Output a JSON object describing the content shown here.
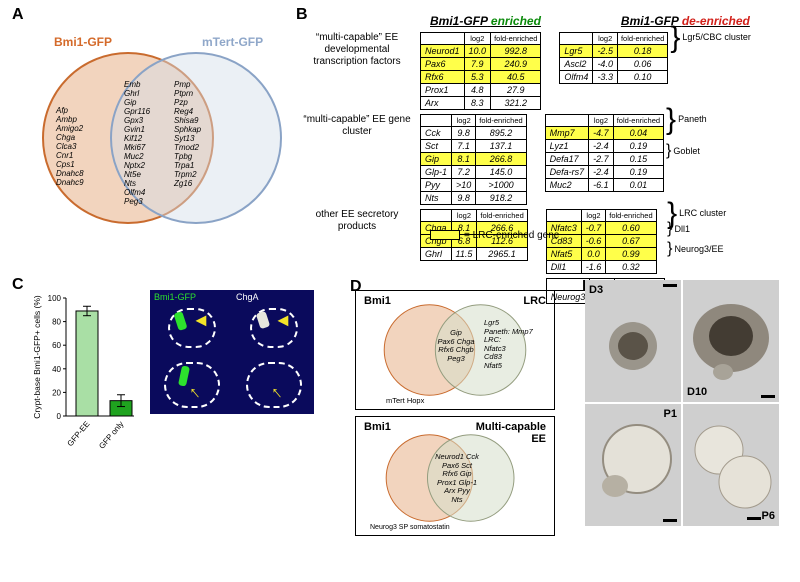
{
  "panelA": {
    "label_left": "Bmi1-GFP",
    "label_right": "mTert-GFP",
    "color_left": "#e7b089",
    "color_right": "#d3dde9",
    "stroke_left": "#c96b2e",
    "stroke_right": "#8aa3c6",
    "left_only": [
      "Afp",
      "Ambp",
      "Amigo2",
      "Chga",
      "Clca3",
      "Cnr1",
      "Cps1",
      "Dnahc8",
      "Dnahc9"
    ],
    "overlap_col1": [
      "Emb",
      "Ghrl",
      "Gip",
      "Gpr116",
      "Gpx3",
      "Gvin1",
      "Kif12",
      "Mki67",
      "Muc2",
      "Nptx2",
      "Nt5e",
      "Nts",
      "Olfm4",
      "Peg3"
    ],
    "overlap_col2": [
      "Pmp",
      "Ptprn",
      "Pzp",
      "Reg4",
      "Shisa9",
      "Sphkap",
      "Syt13",
      "Tmod2",
      "Tpbg",
      "Trpa1",
      "Trpm2",
      "Zg16"
    ]
  },
  "panelB": {
    "tables_left": [
      {
        "row_label": "“multi-capable” EE developmental transcription factors",
        "rows": [
          {
            "g": "Neurod1",
            "l": "10.0",
            "f": "992.8",
            "hl": true
          },
          {
            "g": "Pax6",
            "l": "7.9",
            "f": "240.9",
            "hl": true
          },
          {
            "g": "Rfx6",
            "l": "5.3",
            "f": "40.5",
            "hl": true
          },
          {
            "g": "Prox1",
            "l": "4.8",
            "f": "27.9",
            "hl": false
          },
          {
            "g": "Arx",
            "l": "8.3",
            "f": "321.2",
            "hl": false
          }
        ]
      },
      {
        "row_label": "“multi-capable” EE gene cluster",
        "rows": [
          {
            "g": "Cck",
            "l": "9.8",
            "f": "895.2",
            "hl": false
          },
          {
            "g": "Sct",
            "l": "7.1",
            "f": "137.1",
            "hl": false
          },
          {
            "g": "Gip",
            "l": "8.1",
            "f": "266.8",
            "hl": true
          },
          {
            "g": "Glp-1",
            "l": "7.2",
            "f": "145.0",
            "hl": false
          },
          {
            "g": "Pyy",
            "l": ">10",
            "f": ">1000",
            "hl": false
          },
          {
            "g": "Nts",
            "l": "9.8",
            "f": "918.2",
            "hl": false
          }
        ]
      },
      {
        "row_label": "other EE secretory products",
        "rows": [
          {
            "g": "Chga",
            "l": "8.1",
            "f": "266.6",
            "hl": true
          },
          {
            "g": "Chgb",
            "l": "6.8",
            "f": "112.6",
            "hl": true
          },
          {
            "g": "Ghrl",
            "l": "11.5",
            "f": "2965.1",
            "hl": false
          }
        ]
      }
    ],
    "tables_right": [
      {
        "name": "Lgr5/CBC cluster",
        "rows": [
          {
            "g": "Lgr5",
            "l": "-2.5",
            "f": "0.18",
            "hl": true
          },
          {
            "g": "Ascl2",
            "l": "-4.0",
            "f": "0.06",
            "hl": false
          },
          {
            "g": "Olfm4",
            "l": "-3.3",
            "f": "0.10",
            "hl": false
          }
        ]
      },
      {
        "name": "Paneth",
        "goblet": "Goblet",
        "rows": [
          {
            "g": "Mmp7",
            "l": "-4.7",
            "f": "0.04",
            "hl": true
          },
          {
            "g": "Lyz1",
            "l": "-2.4",
            "f": "0.19",
            "hl": false
          },
          {
            "g": "Defa17",
            "l": "-2.7",
            "f": "0.15",
            "hl": false
          },
          {
            "g": "Defa-rs7",
            "l": "-2.4",
            "f": "0.19",
            "hl": false
          },
          {
            "g": "Muc2",
            "l": "-6.1",
            "f": "0.01",
            "hl": false,
            "goblet": true
          }
        ]
      },
      {
        "name": "LRC cluster",
        "dll": "Dll1",
        "rows": [
          {
            "g": "Nfatc3",
            "l": "-0.7",
            "f": "0.60",
            "hl": true
          },
          {
            "g": "Cd83",
            "l": "-0.6",
            "f": "0.67",
            "hl": true
          },
          {
            "g": "Nfat5",
            "l": "0.0",
            "f": "0.99",
            "hl": true
          },
          {
            "g": "Dll1",
            "l": "-1.6",
            "f": "0.32",
            "hl": false,
            "dll": true
          }
        ]
      },
      {
        "name": "Neurog3/EE",
        "rows": [
          {
            "g": "Neurog3",
            "l": "-2.0",
            "f": "0.25",
            "hl": false
          }
        ]
      }
    ],
    "col_headers": [
      "",
      "log2",
      "fold-enriched"
    ],
    "title_enriched": "Bmi1-GFP",
    "title_enriched2": "enriched",
    "title_de": "Bmi1-GFP",
    "title_de2": "de-enriched",
    "legend": "= LRC-enriched gene"
  },
  "panelC": {
    "y_label": "Crypt-base Bmi1-GFP+ cells (%)",
    "ymax": 100,
    "ytick": 20,
    "bars": [
      {
        "label": "GFP-EE",
        "value": 89,
        "err": 4,
        "color": "#a9dfa5"
      },
      {
        "label": "GFP only",
        "value": 13,
        "err": 5,
        "color": "#1fa31f"
      }
    ],
    "img_titles": [
      "Bmi1-GFP",
      "ChgA"
    ]
  },
  "panelD": {
    "top": {
      "left": "Bmi1",
      "right": "LRC",
      "left_only": "mTert   Hopx",
      "overlap": [
        "Gip",
        "Pax6   Chga",
        "Rfx6   Chgb",
        "Peg3"
      ],
      "right_only": [
        "Lgr5",
        "Paneth: Mmp7",
        "LRC:",
        "Nfatc3",
        "Cd83",
        "Nfat5"
      ]
    },
    "bottom": {
      "left": "Bmi1",
      "right": "Multi-capable EE",
      "left_only": "Neurog3   SP   somatostatin",
      "overlap": [
        "Neurod1 Cck",
        "Pax6   Sct",
        "Rfx6   Gip",
        "Prox1 Glp-1",
        "Arx   Pyy",
        "Nts"
      ]
    }
  },
  "panelE": {
    "labels": [
      "D3",
      "D10",
      "P1",
      "P6"
    ]
  },
  "colors": {
    "highlight": "#ffff4a"
  }
}
